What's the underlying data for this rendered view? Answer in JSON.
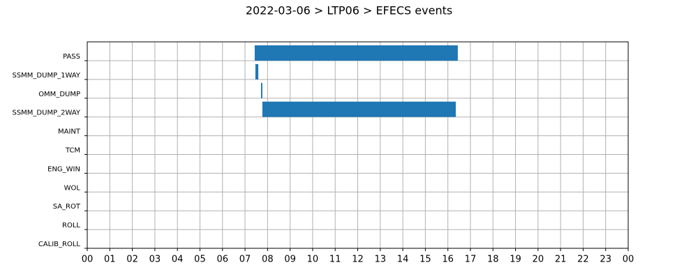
{
  "chart_data": {
    "type": "timeline",
    "title": "2022-03-06 > LTP06 > EFECS events",
    "categories": [
      "PASS",
      "SSMM_DUMP_1WAY",
      "OMM_DUMP",
      "SSMM_DUMP_2WAY",
      "MAINT",
      "TCM",
      "ENG_WIN",
      "WOL",
      "SA_ROT",
      "ROLL",
      "CALIB_ROLL"
    ],
    "starts": [
      7.43,
      7.46,
      7.71,
      7.77,
      null,
      null,
      null,
      null,
      null,
      null,
      null
    ],
    "ends": [
      16.44,
      7.59,
      7.77,
      16.35,
      null,
      null,
      null,
      null,
      null,
      null,
      null
    ],
    "color": "#1f77b4",
    "xlim": [
      0,
      24
    ],
    "xticks": [
      {
        "value": 0,
        "label": "00"
      },
      {
        "value": 1,
        "label": "01"
      },
      {
        "value": 2,
        "label": "02"
      },
      {
        "value": 3,
        "label": "03"
      },
      {
        "value": 4,
        "label": "04"
      },
      {
        "value": 5,
        "label": "05"
      },
      {
        "value": 6,
        "label": "06"
      },
      {
        "value": 7,
        "label": "07"
      },
      {
        "value": 8,
        "label": "08"
      },
      {
        "value": 9,
        "label": "09"
      },
      {
        "value": 10,
        "label": "10"
      },
      {
        "value": 11,
        "label": "11"
      },
      {
        "value": 12,
        "label": "12"
      },
      {
        "value": 13,
        "label": "13"
      },
      {
        "value": 14,
        "label": "14"
      },
      {
        "value": 15,
        "label": "15"
      },
      {
        "value": 16,
        "label": "16"
      },
      {
        "value": 17,
        "label": "17"
      },
      {
        "value": 18,
        "label": "18"
      },
      {
        "value": 19,
        "label": "19"
      },
      {
        "value": 20,
        "label": "20"
      },
      {
        "value": 21,
        "label": "21"
      },
      {
        "value": 22,
        "label": "22"
      },
      {
        "value": 23,
        "label": "23"
      },
      {
        "value": 24,
        "label": "00"
      }
    ],
    "grid": true
  }
}
